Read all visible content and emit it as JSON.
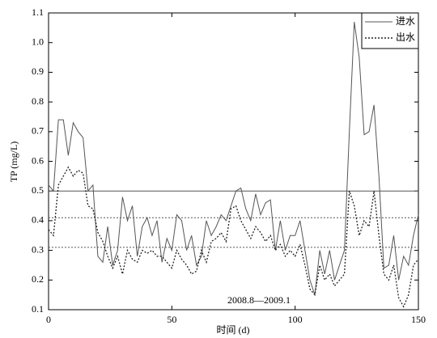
{
  "chart_data": {
    "type": "line",
    "xlabel": "时间 (d)",
    "ylabel": "TP (mg/L)",
    "annotation": "2008.8—2009.1",
    "x": [
      0,
      2,
      4,
      6,
      8,
      10,
      12,
      14,
      16,
      18,
      20,
      22,
      24,
      26,
      28,
      30,
      32,
      34,
      36,
      38,
      40,
      42,
      44,
      46,
      48,
      50,
      52,
      54,
      56,
      58,
      60,
      62,
      64,
      66,
      68,
      70,
      72,
      74,
      76,
      78,
      80,
      82,
      84,
      86,
      88,
      90,
      92,
      94,
      96,
      98,
      100,
      102,
      104,
      106,
      108,
      110,
      112,
      114,
      116,
      118,
      120,
      122,
      124,
      126,
      128,
      130,
      132,
      134,
      136,
      138,
      140,
      142,
      144,
      146,
      148,
      150
    ],
    "series": [
      {
        "name": "进水",
        "color": "#555555",
        "dash": "solid",
        "values": [
          0.52,
          0.5,
          0.74,
          0.74,
          0.62,
          0.73,
          0.7,
          0.68,
          0.5,
          0.52,
          0.28,
          0.26,
          0.38,
          0.25,
          0.3,
          0.48,
          0.4,
          0.45,
          0.28,
          0.38,
          0.41,
          0.35,
          0.4,
          0.26,
          0.34,
          0.3,
          0.42,
          0.4,
          0.3,
          0.35,
          0.25,
          0.28,
          0.4,
          0.35,
          0.38,
          0.42,
          0.4,
          0.45,
          0.5,
          0.51,
          0.44,
          0.4,
          0.49,
          0.42,
          0.46,
          0.47,
          0.3,
          0.4,
          0.3,
          0.35,
          0.35,
          0.4,
          0.3,
          0.2,
          0.15,
          0.3,
          0.22,
          0.3,
          0.2,
          0.25,
          0.3,
          0.7,
          1.07,
          0.95,
          0.69,
          0.7,
          0.79,
          0.55,
          0.24,
          0.25,
          0.35,
          0.2,
          0.28,
          0.25,
          0.35,
          0.42
        ]
      },
      {
        "name": "出水",
        "color": "#222222",
        "dash": "dotted",
        "values": [
          0.37,
          0.35,
          0.52,
          0.55,
          0.58,
          0.55,
          0.57,
          0.56,
          0.45,
          0.44,
          0.36,
          0.33,
          0.28,
          0.24,
          0.28,
          0.22,
          0.3,
          0.27,
          0.26,
          0.3,
          0.29,
          0.3,
          0.28,
          0.28,
          0.26,
          0.24,
          0.3,
          0.27,
          0.25,
          0.22,
          0.23,
          0.3,
          0.26,
          0.33,
          0.34,
          0.36,
          0.33,
          0.44,
          0.45,
          0.4,
          0.37,
          0.34,
          0.38,
          0.36,
          0.33,
          0.35,
          0.3,
          0.32,
          0.28,
          0.3,
          0.28,
          0.32,
          0.25,
          0.17,
          0.15,
          0.25,
          0.2,
          0.22,
          0.18,
          0.2,
          0.22,
          0.5,
          0.45,
          0.35,
          0.4,
          0.38,
          0.5,
          0.35,
          0.22,
          0.2,
          0.25,
          0.14,
          0.11,
          0.15,
          0.25,
          0.27
        ]
      }
    ],
    "reference_lines": [
      {
        "value": 0.5,
        "dash": "solid"
      },
      {
        "value": 0.41,
        "dash": "dotted"
      },
      {
        "value": 0.31,
        "dash": "dotted"
      }
    ],
    "xlim": [
      0,
      150
    ],
    "xticks": [
      0,
      50,
      100,
      150
    ],
    "ylim": [
      0.1,
      1.1
    ],
    "yticks": [
      0.1,
      0.2,
      0.3,
      0.4,
      0.5,
      0.6,
      0.7,
      0.8,
      0.9,
      {
        "value": 1,
        "label": "1.0"
      },
      1.1
    ],
    "legend": "upper right"
  }
}
